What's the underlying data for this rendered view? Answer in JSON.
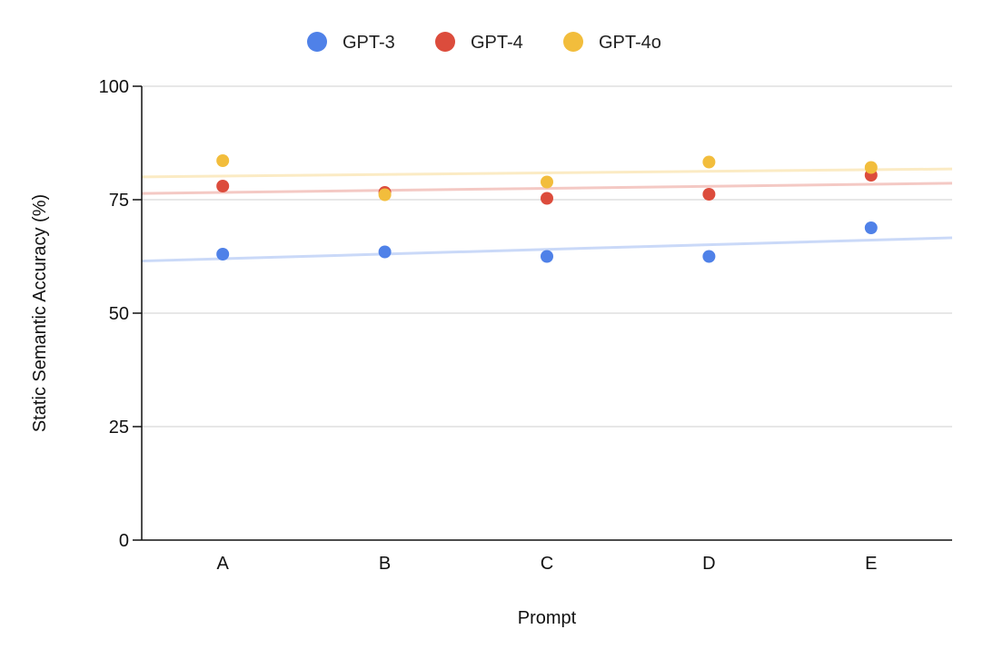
{
  "chart_data": {
    "type": "scatter",
    "title": "",
    "xlabel": "Prompt",
    "ylabel": "Static Semantic Accuracy (%)",
    "categories": [
      "A",
      "B",
      "C",
      "D",
      "E"
    ],
    "ylim": [
      0,
      100
    ],
    "yticks": [
      0,
      25,
      50,
      75,
      100
    ],
    "grid": "horizontal",
    "legend_position": "top",
    "trendlines": true,
    "series": [
      {
        "name": "GPT-3",
        "color": "#4f81e8",
        "values": [
          63.0,
          63.5,
          62.5,
          62.5,
          68.8
        ],
        "trend": [
          62.0,
          63.0,
          64.0,
          65.1,
          66.1
        ]
      },
      {
        "name": "GPT-4",
        "color": "#dc4c3c",
        "values": [
          78.0,
          76.6,
          75.3,
          76.2,
          80.4
        ],
        "trend": [
          76.6,
          77.1,
          77.6,
          78.0,
          78.4
        ]
      },
      {
        "name": "GPT-4o",
        "color": "#f2bd3c",
        "values": [
          83.6,
          76.1,
          78.9,
          83.3,
          82.1
        ],
        "trend": [
          80.2,
          80.6,
          80.9,
          81.3,
          81.6
        ]
      }
    ]
  }
}
